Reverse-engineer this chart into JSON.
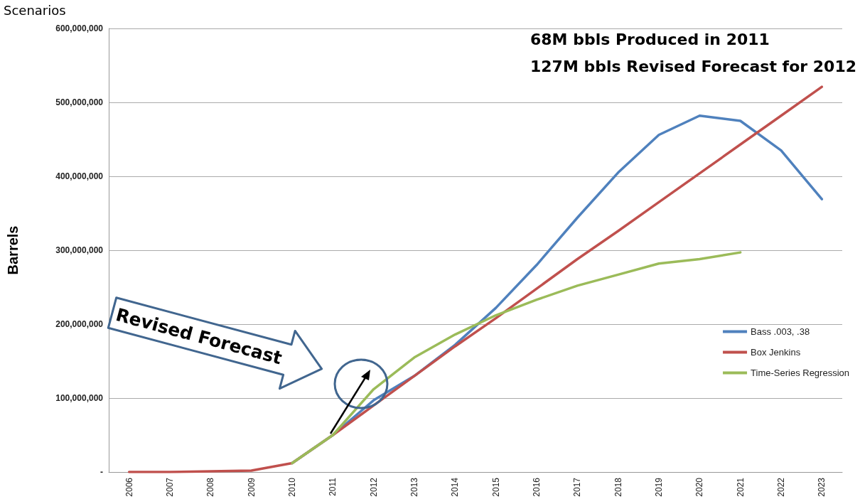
{
  "chart_data": {
    "type": "line",
    "title": "Scenarios",
    "ylabel": "Barrels",
    "annotations": [
      "68M bbls Produced in 2011",
      "127M bbls Revised Forecast for 2012",
      "Revised Forecast"
    ],
    "categories": [
      "2006",
      "2007",
      "2008",
      "2009",
      "2010",
      "2011",
      "2012",
      "2013",
      "2014",
      "2015",
      "2016",
      "2017",
      "2018",
      "2019",
      "2020",
      "2021",
      "2022",
      "2023"
    ],
    "series": [
      {
        "name": "Bass .003, .38",
        "color": "#4f81bd",
        "values": [
          null,
          null,
          null,
          null,
          12000000,
          50000000,
          97000000,
          130000000,
          172000000,
          222000000,
          280000000,
          344000000,
          405000000,
          456000000,
          482000000,
          475000000,
          435000000,
          369000000
        ]
      },
      {
        "name": "Box Jenkins",
        "color": "#c0504d",
        "values": [
          0,
          0,
          1000000,
          2000000,
          12000000,
          50000000,
          90000000,
          130000000,
          170000000,
          208000000,
          248000000,
          288000000,
          326000000,
          365000000,
          404000000,
          443000000,
          482000000,
          521000000
        ]
      },
      {
        "name": "Time-Series Regression",
        "color": "#9bbb59",
        "values": [
          null,
          null,
          null,
          null,
          12000000,
          50000000,
          112000000,
          155000000,
          186000000,
          212000000,
          233000000,
          252000000,
          267000000,
          282000000,
          288000000,
          297000000,
          null,
          null
        ]
      }
    ],
    "ylim": [
      0,
      600000000
    ],
    "yticks": [
      {
        "value": 0,
        "label": "-"
      },
      {
        "value": 100000000,
        "label": "100,000,000"
      },
      {
        "value": 200000000,
        "label": "200,000,000"
      },
      {
        "value": 300000000,
        "label": "300,000,000"
      },
      {
        "value": 400000000,
        "label": "400,000,000"
      },
      {
        "value": 500000000,
        "label": "500,000,000"
      },
      {
        "value": 600000000,
        "label": "600,000,000"
      }
    ],
    "grid": "y",
    "legend": "right",
    "marker": "none",
    "line_style": "solid"
  }
}
